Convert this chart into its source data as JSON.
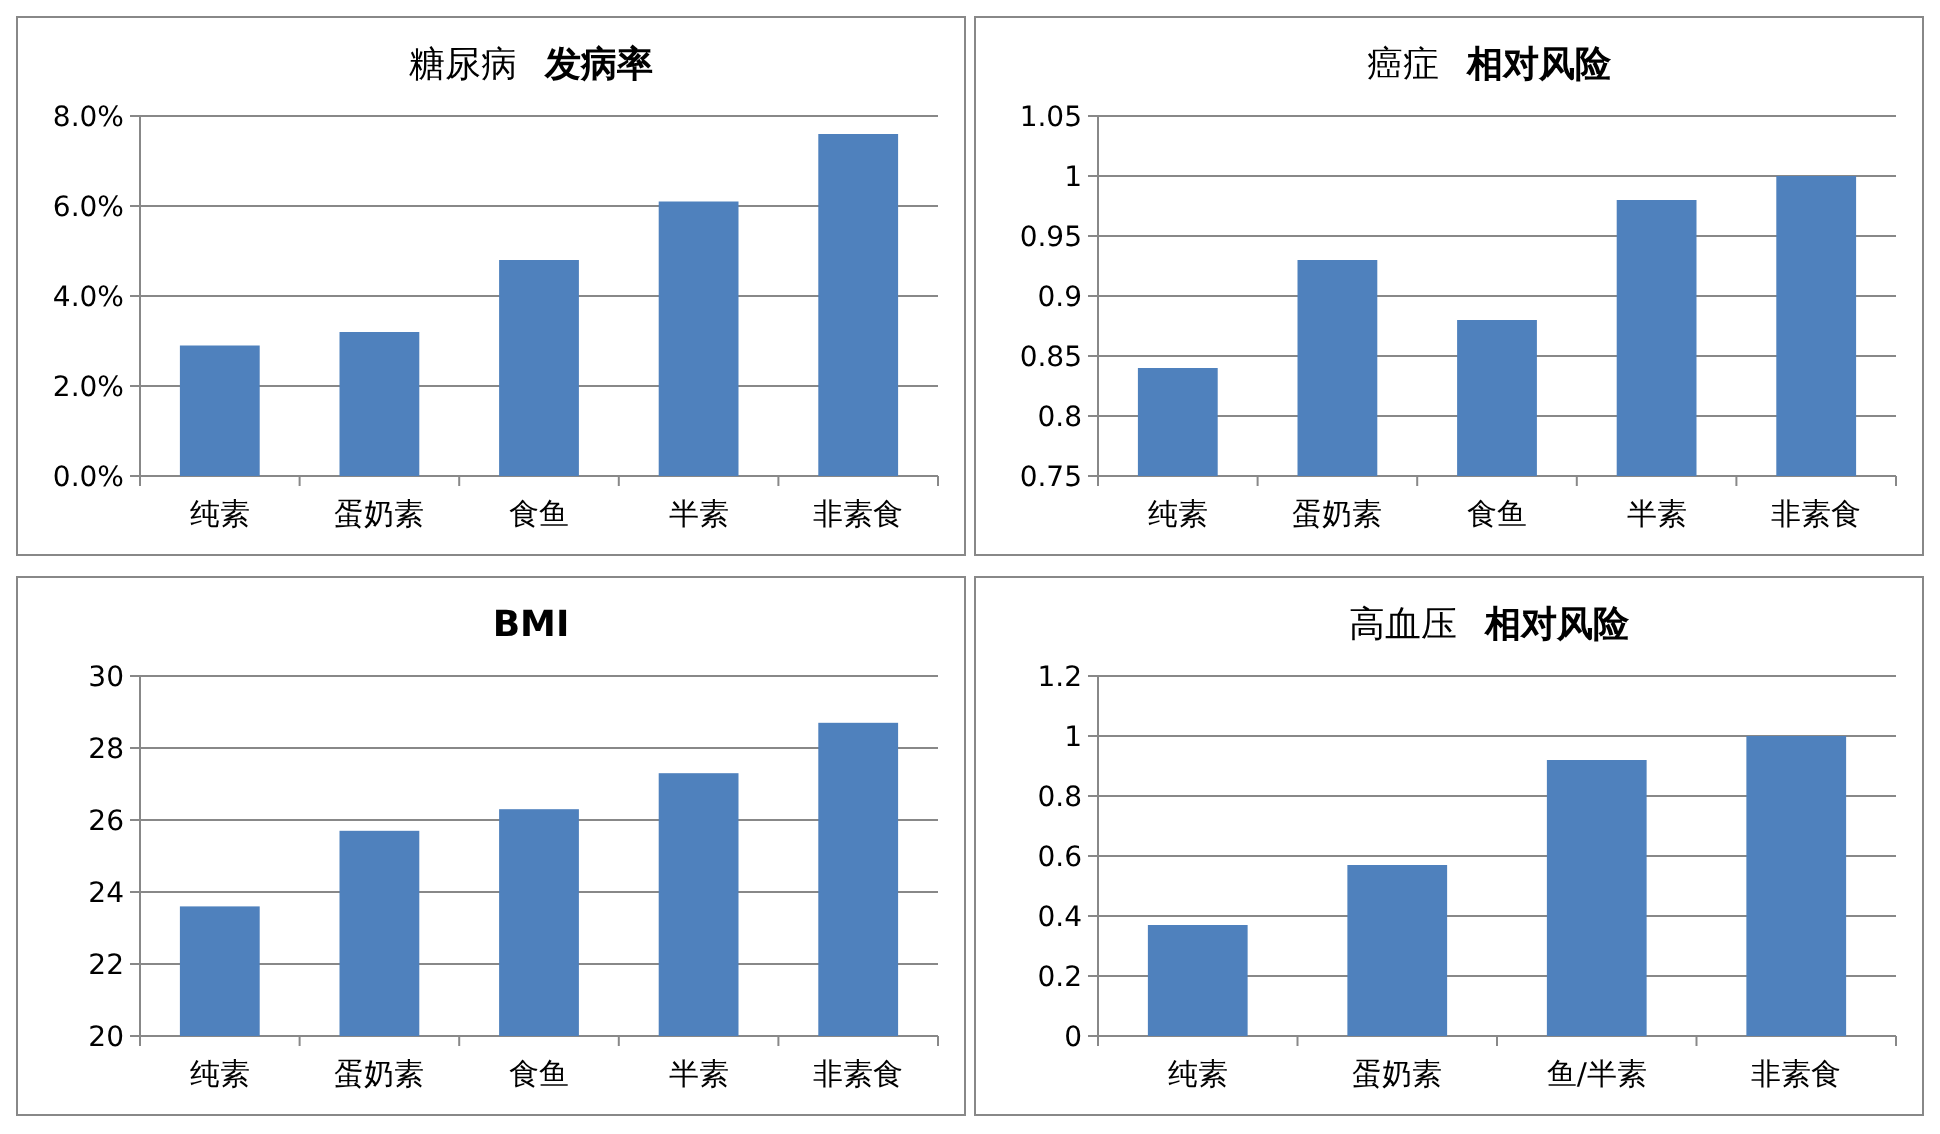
{
  "chart_data": [
    {
      "type": "bar",
      "title": "糖尿病 发病率",
      "categories": [
        "纯素",
        "蛋奶素",
        "食鱼",
        "半素",
        "非素食"
      ],
      "values": [
        2.9,
        3.2,
        4.8,
        6.1,
        7.6
      ],
      "color": "#4f81bd",
      "ylim": [
        0,
        8
      ],
      "yticks": [
        {
          "value": 0,
          "label": "0.0%"
        },
        {
          "value": 2,
          "label": "2.0%"
        },
        {
          "value": 4,
          "label": "4.0%"
        },
        {
          "value": 6,
          "label": "6.0%"
        },
        {
          "value": 8,
          "label": "8.0%"
        }
      ],
      "grid": "y"
    },
    {
      "type": "bar",
      "title": "癌症 相对风险",
      "categories": [
        "纯素",
        "蛋奶素",
        "食鱼",
        "半素",
        "非素食"
      ],
      "values": [
        0.84,
        0.93,
        0.88,
        0.98,
        1.0
      ],
      "color": "#4f81bd",
      "ylim": [
        0.75,
        1.05
      ],
      "yticks": [
        0.75,
        0.8,
        0.85,
        0.9,
        0.95,
        1,
        1.05
      ],
      "grid": "y"
    },
    {
      "type": "bar",
      "title": "BMI",
      "categories": [
        "纯素",
        "蛋奶素",
        "食鱼",
        "半素",
        "非素食"
      ],
      "values": [
        23.6,
        25.7,
        26.3,
        27.3,
        28.7
      ],
      "color": "#4f81bd",
      "ylim": [
        20,
        30
      ],
      "yticks": [
        20,
        22,
        24,
        26,
        28,
        30
      ],
      "grid": "y"
    },
    {
      "type": "bar",
      "title": "高血压 相对风险",
      "categories": [
        "纯素",
        "蛋奶素",
        "鱼/半素",
        "非素食"
      ],
      "values": [
        0.37,
        0.57,
        0.92,
        1.0
      ],
      "color": "#4f81bd",
      "ylim": [
        0,
        1.2
      ],
      "yticks": [
        0,
        0.2,
        0.4,
        0.6,
        0.8,
        1,
        1.2
      ],
      "grid": "y"
    }
  ]
}
